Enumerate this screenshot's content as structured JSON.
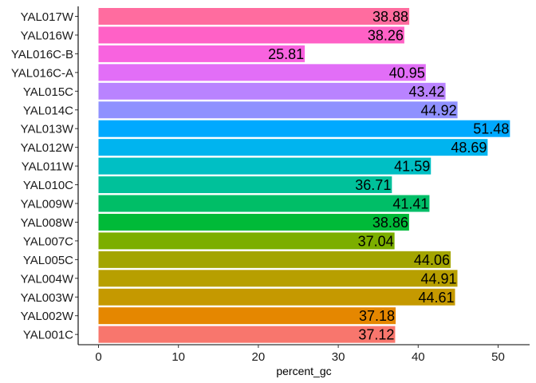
{
  "chart_data": {
    "type": "bar",
    "orientation": "horizontal",
    "title": "",
    "xlabel": "percent_gc",
    "ylabel": "",
    "xlim": [
      0,
      54
    ],
    "xticks": [
      0,
      10,
      20,
      30,
      40,
      50
    ],
    "grid": false,
    "legend": "none",
    "categories": [
      "YAL017W",
      "YAL016W",
      "YAL016C-B",
      "YAL016C-A",
      "YAL015C",
      "YAL014C",
      "YAL013W",
      "YAL012W",
      "YAL011W",
      "YAL010C",
      "YAL009W",
      "YAL008W",
      "YAL007C",
      "YAL005C",
      "YAL004W",
      "YAL003W",
      "YAL002W",
      "YAL001C"
    ],
    "values": [
      38.88,
      38.26,
      25.81,
      40.95,
      43.42,
      44.92,
      51.48,
      48.69,
      41.59,
      36.71,
      41.41,
      38.86,
      37.04,
      44.06,
      44.91,
      44.61,
      37.18,
      37.12
    ],
    "labels": [
      "38.88",
      "38.26",
      "25.81",
      "40.95",
      "43.42",
      "44.92",
      "51.48",
      "48.69",
      "41.59",
      "36.71",
      "41.41",
      "38.86",
      "37.04",
      "44.06",
      "44.91",
      "44.61",
      "37.18",
      "37.12"
    ],
    "colors": [
      "#FF6C9F",
      "#FF61C6",
      "#F863DF",
      "#E26EF7",
      "#B983FF",
      "#8F91FF",
      "#00A9FF",
      "#00B4EF",
      "#00BFC4",
      "#00C19A",
      "#00BE67",
      "#00BA38",
      "#7CAE00",
      "#A3A500",
      "#B79F00",
      "#C59900",
      "#E58700",
      "#F8766D"
    ]
  }
}
